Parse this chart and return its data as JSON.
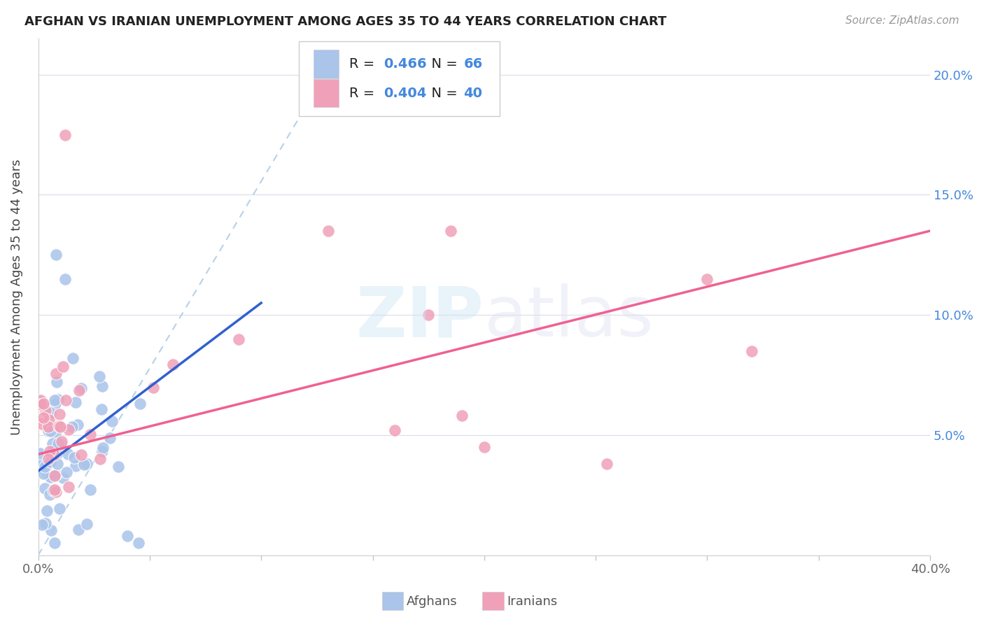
{
  "title": "AFGHAN VS IRANIAN UNEMPLOYMENT AMONG AGES 35 TO 44 YEARS CORRELATION CHART",
  "source": "Source: ZipAtlas.com",
  "ylabel": "Unemployment Among Ages 35 to 44 years",
  "ytick_labels": [
    "5.0%",
    "10.0%",
    "15.0%",
    "20.0%"
  ],
  "afghan_color": "#aac4ea",
  "iranian_color": "#f0a0b8",
  "afghan_line_color": "#3060d0",
  "iranian_line_color": "#f06090",
  "dashed_line_color": "#b0cce8",
  "watermark_zip_color": "#d0e8f5",
  "watermark_atlas_color": "#d8d8f0",
  "xlim": [
    0.0,
    0.4
  ],
  "ylim": [
    0.0,
    0.215
  ],
  "background_color": "#ffffff",
  "r_afghan": "0.466",
  "n_afghan": "66",
  "r_iranian": "0.404",
  "n_iranian": "40",
  "blue_text_color": "#4488dd",
  "grid_color": "#d8d8e8",
  "tick_label_color": "#666666",
  "title_color": "#222222",
  "source_color": "#999999",
  "ylabel_color": "#444444"
}
